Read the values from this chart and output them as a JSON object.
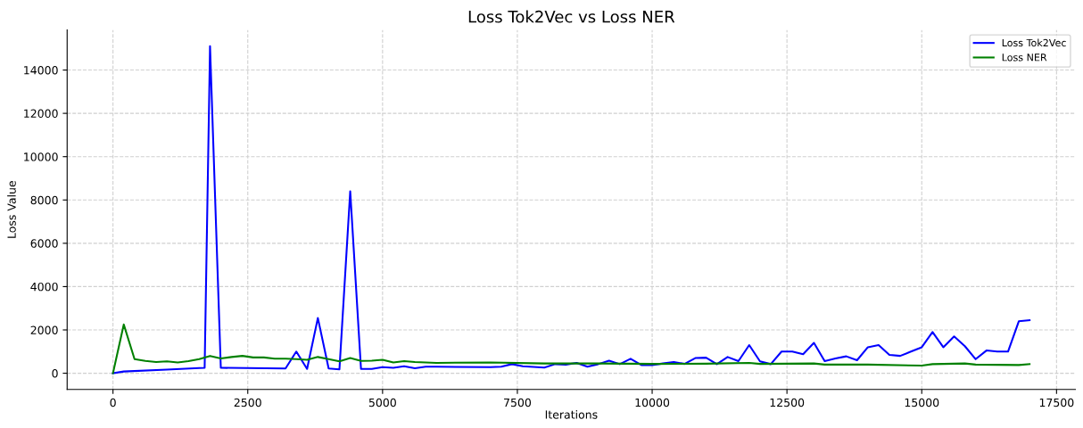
{
  "chart_data": {
    "type": "line",
    "title": "Loss Tok2Vec vs Loss NER",
    "xlabel": "Iterations",
    "ylabel": "Loss Value",
    "xlim": [
      -850,
      17850
    ],
    "ylim": [
      -750,
      15850
    ],
    "xticks": [
      0,
      2500,
      5000,
      7500,
      10000,
      12500,
      15000,
      17500
    ],
    "yticks": [
      0,
      2000,
      4000,
      6000,
      8000,
      10000,
      12000,
      14000
    ],
    "grid": true,
    "legend": "top right",
    "marker": "none",
    "line_style": "solid",
    "series": [
      {
        "name": "Loss Tok2Vec",
        "color": "#0000ff",
        "x": [
          0,
          200,
          1000,
          1600,
          1700,
          1800,
          2000,
          3200,
          3400,
          3600,
          3800,
          4000,
          4200,
          4400,
          4600,
          4800,
          5000,
          5200,
          5400,
          5600,
          5800,
          6000,
          7000,
          7200,
          7400,
          7600,
          8000,
          8200,
          8400,
          8600,
          8800,
          9000,
          9200,
          9400,
          9600,
          9800,
          10000,
          10200,
          10400,
          10600,
          10800,
          11000,
          11200,
          11400,
          11600,
          11800,
          12000,
          12200,
          12400,
          12600,
          12800,
          13000,
          13200,
          13400,
          13600,
          13800,
          14000,
          14200,
          14400,
          14600,
          14800,
          15000,
          15200,
          15400,
          15600,
          15800,
          16000,
          16200,
          16400,
          16600,
          16800,
          17000
        ],
        "values": [
          0,
          80,
          170,
          240,
          250,
          15100,
          250,
          220,
          1000,
          200,
          2550,
          220,
          180,
          8400,
          200,
          200,
          280,
          250,
          320,
          230,
          300,
          300,
          280,
          300,
          420,
          320,
          260,
          420,
          400,
          480,
          300,
          420,
          580,
          420,
          670,
          380,
          380,
          450,
          520,
          430,
          700,
          720,
          420,
          750,
          560,
          1300,
          550,
          420,
          1000,
          1000,
          880,
          1400,
          560,
          680,
          780,
          600,
          1200,
          1300,
          850,
          800,
          1000,
          1200,
          1900,
          1200,
          1700,
          1250,
          650,
          1050,
          1000,
          1000,
          2400,
          2450
        ]
      },
      {
        "name": "Loss NER",
        "color": "#008000",
        "x": [
          0,
          200,
          400,
          600,
          800,
          1000,
          1200,
          1400,
          1600,
          1800,
          2000,
          2200,
          2400,
          2600,
          2800,
          3000,
          3200,
          3400,
          3600,
          3800,
          4000,
          4200,
          4400,
          4600,
          4800,
          5000,
          5200,
          5400,
          5600,
          6000,
          7000,
          8000,
          9000,
          10000,
          11000,
          11800,
          12000,
          13000,
          13200,
          14000,
          15000,
          15200,
          15800,
          16000,
          16800,
          17000
        ],
        "values": [
          0,
          2250,
          650,
          570,
          520,
          550,
          500,
          560,
          650,
          800,
          680,
          750,
          800,
          730,
          730,
          670,
          670,
          650,
          620,
          750,
          650,
          550,
          700,
          570,
          580,
          620,
          500,
          560,
          520,
          480,
          500,
          450,
          450,
          430,
          440,
          480,
          430,
          450,
          400,
          400,
          350,
          420,
          450,
          400,
          380,
          420
        ]
      }
    ]
  }
}
